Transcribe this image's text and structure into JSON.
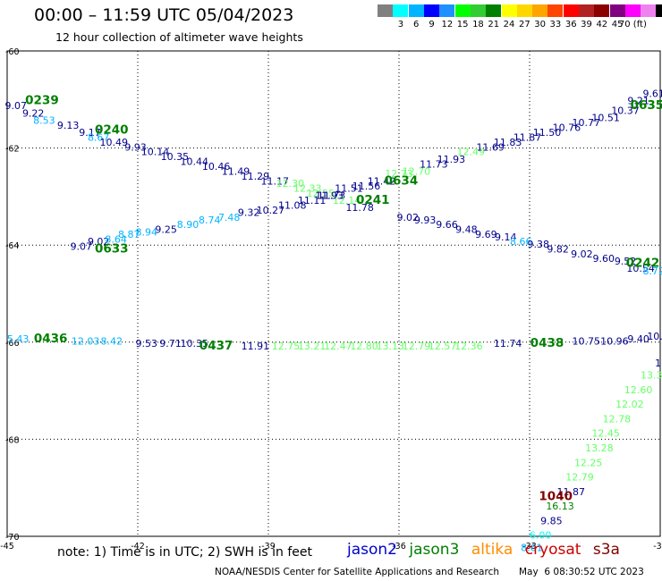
{
  "header": {
    "title": "00:00 – 11:59 UTC 05/04/2023",
    "subtitle": "12 hour collection of altimeter wave heights"
  },
  "color_scale": {
    "colors": [
      "#808080",
      "#00ffff",
      "#00b4ff",
      "#0000ff",
      "#1e90ff",
      "#00ff00",
      "#32cd32",
      "#008000",
      "#ffff00",
      "#ffd700",
      "#ffa500",
      "#ff4500",
      "#ff0000",
      "#b22222",
      "#8b0000",
      "#800080",
      "#ff00ff",
      "#ee82ee",
      "#000000"
    ],
    "labels": [
      "3",
      "6",
      "9",
      "12",
      "15",
      "18",
      "21",
      "24",
      "27",
      "30",
      "33",
      "36",
      "39",
      "42",
      "45",
      "70 (ft)"
    ]
  },
  "chart_data": {
    "type": "scatter",
    "x_axis": {
      "ticks": [
        "-45",
        "-42",
        "-39",
        "-36",
        "-33",
        "-30"
      ],
      "range": [
        -45,
        -30
      ]
    },
    "y_axis": {
      "ticks": [
        "-60",
        "-62",
        "-64",
        "-66",
        "-68",
        "-70"
      ],
      "range": [
        -70,
        -60
      ]
    },
    "grid": true,
    "satellites": [
      {
        "name": "jason2",
        "color": "#0000cd"
      },
      {
        "name": "jason3",
        "color": "#008000"
      },
      {
        "name": "altika",
        "color": "#ff8c00"
      },
      {
        "name": "cryosat",
        "color": "#cc0000"
      },
      {
        "name": "s3a",
        "color": "#800000"
      }
    ],
    "passes": [
      {
        "label": "0239",
        "lon": -44.2,
        "lat": -61.1,
        "color": "#008000"
      },
      {
        "label": "0240",
        "lon": -42.6,
        "lat": -61.7,
        "color": "#008000"
      },
      {
        "label": "0633",
        "lon": -42.6,
        "lat": -64.15,
        "color": "#008000"
      },
      {
        "label": "0634",
        "lon": -35.95,
        "lat": -62.75,
        "color": "#008000"
      },
      {
        "label": "0241",
        "lon": -36.6,
        "lat": -63.15,
        "color": "#008000"
      },
      {
        "label": "0635",
        "lon": -30.3,
        "lat": -61.2,
        "color": "#008000"
      },
      {
        "label": "0242",
        "lon": -30.4,
        "lat": -64.45,
        "color": "#008000"
      },
      {
        "label": "0436",
        "lon": -44.0,
        "lat": -66.0,
        "color": "#008000"
      },
      {
        "label": "0437",
        "lon": -40.2,
        "lat": -66.15,
        "color": "#008000"
      },
      {
        "label": "0438",
        "lon": -32.6,
        "lat": -66.1,
        "color": "#008000"
      },
      {
        "label": "1040",
        "lon": -32.4,
        "lat": -69.25,
        "color": "#800000"
      }
    ],
    "points": [
      {
        "lon": -44.8,
        "lat": -61.2,
        "v": "9.07",
        "c": "#00008b"
      },
      {
        "lon": -44.4,
        "lat": -61.35,
        "v": "9.22",
        "c": "#00008b"
      },
      {
        "lon": -44.15,
        "lat": -61.5,
        "v": "8.53",
        "c": "#00b4ff"
      },
      {
        "lon": -43.6,
        "lat": -61.6,
        "v": "9.13",
        "c": "#00008b"
      },
      {
        "lon": -43.1,
        "lat": -61.75,
        "v": "9.17",
        "c": "#00008b"
      },
      {
        "lon": -42.9,
        "lat": -61.85,
        "v": "8.67",
        "c": "#00b4ff"
      },
      {
        "lon": -42.55,
        "lat": -61.95,
        "v": "10.49",
        "c": "#00008b"
      },
      {
        "lon": -42.05,
        "lat": -62.05,
        "v": "9.93",
        "c": "#00008b"
      },
      {
        "lon": -41.6,
        "lat": -62.15,
        "v": "10.14",
        "c": "#00008b"
      },
      {
        "lon": -41.15,
        "lat": -62.25,
        "v": "10.35",
        "c": "#00008b"
      },
      {
        "lon": -40.7,
        "lat": -62.35,
        "v": "10.44",
        "c": "#00008b"
      },
      {
        "lon": -40.2,
        "lat": -62.45,
        "v": "10.46",
        "c": "#00008b"
      },
      {
        "lon": -39.75,
        "lat": -62.55,
        "v": "11.49",
        "c": "#00008b"
      },
      {
        "lon": -39.3,
        "lat": -62.65,
        "v": "11.29",
        "c": "#00008b"
      },
      {
        "lon": -38.85,
        "lat": -62.75,
        "v": "11.17",
        "c": "#00008b"
      },
      {
        "lon": -38.5,
        "lat": -62.8,
        "v": "12.30",
        "c": "#66ff66"
      },
      {
        "lon": -38.1,
        "lat": -62.9,
        "v": "12.33",
        "c": "#66ff66"
      },
      {
        "lon": -37.8,
        "lat": -63.0,
        "v": "12.55",
        "c": "#66ff66"
      },
      {
        "lon": -37.55,
        "lat": -63.05,
        "v": "11.73",
        "c": "#00008b"
      },
      {
        "lon": -37.2,
        "lat": -63.15,
        "v": "12.14",
        "c": "#66ff66"
      },
      {
        "lon": -36.9,
        "lat": -63.3,
        "v": "11.78",
        "c": "#00008b"
      },
      {
        "lon": -35.8,
        "lat": -63.5,
        "v": "9.02",
        "c": "#00008b"
      },
      {
        "lon": -35.4,
        "lat": -63.55,
        "v": "9.93",
        "c": "#00008b"
      },
      {
        "lon": -34.9,
        "lat": -63.65,
        "v": "9.66",
        "c": "#00008b"
      },
      {
        "lon": -34.45,
        "lat": -63.75,
        "v": "9.48",
        "c": "#00008b"
      },
      {
        "lon": -34.0,
        "lat": -63.85,
        "v": "9.69",
        "c": "#00008b"
      },
      {
        "lon": -33.55,
        "lat": -63.9,
        "v": "9.14",
        "c": "#00008b"
      },
      {
        "lon": -33.2,
        "lat": -64.0,
        "v": "8.66",
        "c": "#00b4ff"
      },
      {
        "lon": -32.8,
        "lat": -64.05,
        "v": "9.38",
        "c": "#00008b"
      },
      {
        "lon": -32.35,
        "lat": -64.15,
        "v": "9.82",
        "c": "#00008b"
      },
      {
        "lon": -31.8,
        "lat": -64.25,
        "v": "9.02",
        "c": "#00008b"
      },
      {
        "lon": -31.3,
        "lat": -64.35,
        "v": "9.60",
        "c": "#00008b"
      },
      {
        "lon": -30.8,
        "lat": -64.4,
        "v": "9.52",
        "c": "#00008b"
      },
      {
        "lon": -30.45,
        "lat": -64.55,
        "v": "10.54",
        "c": "#00008b"
      },
      {
        "lon": -30.15,
        "lat": -64.6,
        "v": "8.72",
        "c": "#00b4ff"
      },
      {
        "lon": -43.3,
        "lat": -64.1,
        "v": "9.07",
        "c": "#00008b"
      },
      {
        "lon": -42.9,
        "lat": -64.0,
        "v": "9.02",
        "c": "#00008b"
      },
      {
        "lon": -42.5,
        "lat": -63.95,
        "v": "8.64",
        "c": "#00b4ff"
      },
      {
        "lon": -42.2,
        "lat": -63.85,
        "v": "8.87",
        "c": "#00b4ff"
      },
      {
        "lon": -41.8,
        "lat": -63.8,
        "v": "8.94",
        "c": "#00b4ff"
      },
      {
        "lon": -41.35,
        "lat": -63.75,
        "v": "9.25",
        "c": "#00008b"
      },
      {
        "lon": -40.85,
        "lat": -63.65,
        "v": "8.90",
        "c": "#00b4ff"
      },
      {
        "lon": -40.35,
        "lat": -63.55,
        "v": "8.74",
        "c": "#00b4ff"
      },
      {
        "lon": -39.9,
        "lat": -63.5,
        "v": "7.48",
        "c": "#00b4ff"
      },
      {
        "lon": -39.45,
        "lat": -63.4,
        "v": "9.32",
        "c": "#00008b"
      },
      {
        "lon": -38.95,
        "lat": -63.35,
        "v": "10.27",
        "c": "#00008b"
      },
      {
        "lon": -38.45,
        "lat": -63.25,
        "v": "11.08",
        "c": "#00008b"
      },
      {
        "lon": -38.0,
        "lat": -63.15,
        "v": "11.11",
        "c": "#00008b"
      },
      {
        "lon": -37.6,
        "lat": -63.05,
        "v": "11.93",
        "c": "#00008b"
      },
      {
        "lon": -37.15,
        "lat": -62.9,
        "v": "11.51",
        "c": "#00008b"
      },
      {
        "lon": -36.75,
        "lat": -62.85,
        "v": "11.56",
        "c": "#00008b"
      },
      {
        "lon": -36.4,
        "lat": -62.75,
        "v": "11.42",
        "c": "#00008b"
      },
      {
        "lon": -36.0,
        "lat": -62.6,
        "v": "12.73",
        "c": "#66ff66"
      },
      {
        "lon": -35.6,
        "lat": -62.55,
        "v": "12.70",
        "c": "#66ff66"
      },
      {
        "lon": -35.2,
        "lat": -62.4,
        "v": "11.73",
        "c": "#00008b"
      },
      {
        "lon": -34.8,
        "lat": -62.3,
        "v": "11.93",
        "c": "#00008b"
      },
      {
        "lon": -34.35,
        "lat": -62.15,
        "v": "12.49",
        "c": "#66ff66"
      },
      {
        "lon": -33.9,
        "lat": -62.05,
        "v": "11.69",
        "c": "#00008b"
      },
      {
        "lon": -33.5,
        "lat": -61.95,
        "v": "11.83",
        "c": "#00008b"
      },
      {
        "lon": -33.05,
        "lat": -61.85,
        "v": "11.87",
        "c": "#00008b"
      },
      {
        "lon": -32.6,
        "lat": -61.75,
        "v": "11.50",
        "c": "#00008b"
      },
      {
        "lon": -32.15,
        "lat": -61.65,
        "v": "10.76",
        "c": "#00008b"
      },
      {
        "lon": -31.7,
        "lat": -61.55,
        "v": "10.77",
        "c": "#00008b"
      },
      {
        "lon": -31.25,
        "lat": -61.45,
        "v": "10.51",
        "c": "#00008b"
      },
      {
        "lon": -30.8,
        "lat": -61.3,
        "v": "10.37",
        "c": "#00008b"
      },
      {
        "lon": -30.5,
        "lat": -61.1,
        "v": "9.21",
        "c": "#00008b"
      },
      {
        "lon": -30.15,
        "lat": -60.95,
        "v": "9.61",
        "c": "#00008b"
      },
      {
        "lon": -44.75,
        "lat": -66.0,
        "v": "5.43",
        "c": "#00b4ff"
      },
      {
        "lon": -43.2,
        "lat": -66.05,
        "v": "12.03",
        "c": "#00b4ff"
      },
      {
        "lon": -42.6,
        "lat": -66.05,
        "v": "8.42",
        "c": "#00b4ff"
      },
      {
        "lon": -41.8,
        "lat": -66.1,
        "v": "9.53",
        "c": "#00008b"
      },
      {
        "lon": -41.25,
        "lat": -66.1,
        "v": "9.71",
        "c": "#00008b"
      },
      {
        "lon": -40.7,
        "lat": -66.1,
        "v": "10.35",
        "c": "#00008b"
      },
      {
        "lon": -39.3,
        "lat": -66.15,
        "v": "11.91",
        "c": "#00008b"
      },
      {
        "lon": -38.6,
        "lat": -66.15,
        "v": "12.75",
        "c": "#66ff66"
      },
      {
        "lon": -38.0,
        "lat": -66.15,
        "v": "13.21",
        "c": "#66ff66"
      },
      {
        "lon": -37.4,
        "lat": -66.15,
        "v": "12.47",
        "c": "#66ff66"
      },
      {
        "lon": -36.8,
        "lat": -66.15,
        "v": "12.80",
        "c": "#66ff66"
      },
      {
        "lon": -36.2,
        "lat": -66.15,
        "v": "13.13",
        "c": "#66ff66"
      },
      {
        "lon": -35.6,
        "lat": -66.15,
        "v": "12.79",
        "c": "#66ff66"
      },
      {
        "lon": -35.0,
        "lat": -66.15,
        "v": "12.57",
        "c": "#66ff66"
      },
      {
        "lon": -34.4,
        "lat": -66.15,
        "v": "12.36",
        "c": "#66ff66"
      },
      {
        "lon": -33.5,
        "lat": -66.1,
        "v": "11.74",
        "c": "#00008b"
      },
      {
        "lon": -31.7,
        "lat": -66.05,
        "v": "10.75",
        "c": "#00008b"
      },
      {
        "lon": -31.05,
        "lat": -66.05,
        "v": "10.96",
        "c": "#00008b"
      },
      {
        "lon": -30.5,
        "lat": -66.0,
        "v": "9.40",
        "c": "#00008b"
      },
      {
        "lon": -30.05,
        "lat": -65.95,
        "v": "10.3",
        "c": "#00008b"
      },
      {
        "lon": -30.05,
        "lat": -66.5,
        "v": "1",
        "c": "#00008b"
      },
      {
        "lon": -30.2,
        "lat": -66.75,
        "v": "13.3",
        "c": "#66ff66"
      },
      {
        "lon": -30.5,
        "lat": -67.05,
        "v": "12.60",
        "c": "#66ff66"
      },
      {
        "lon": -30.7,
        "lat": -67.35,
        "v": "12.02",
        "c": "#66ff66"
      },
      {
        "lon": -31.0,
        "lat": -67.65,
        "v": "12.78",
        "c": "#66ff66"
      },
      {
        "lon": -31.25,
        "lat": -67.95,
        "v": "12.45",
        "c": "#66ff66"
      },
      {
        "lon": -31.4,
        "lat": -68.25,
        "v": "13.28",
        "c": "#66ff66"
      },
      {
        "lon": -31.65,
        "lat": -68.55,
        "v": "12.25",
        "c": "#66ff66"
      },
      {
        "lon": -31.85,
        "lat": -68.85,
        "v": "12.79",
        "c": "#66ff66"
      },
      {
        "lon": -32.05,
        "lat": -69.15,
        "v": "11.87",
        "c": "#00008b"
      },
      {
        "lon": -32.3,
        "lat": -69.45,
        "v": "16.13",
        "c": "#008000"
      },
      {
        "lon": -32.5,
        "lat": -69.75,
        "v": "9.85",
        "c": "#00008b"
      },
      {
        "lon": -32.75,
        "lat": -70.05,
        "v": "6.00",
        "c": "#00ffff"
      },
      {
        "lon": -32.95,
        "lat": -70.3,
        "v": "8.61",
        "c": "#00b4ff"
      }
    ]
  },
  "footer": {
    "note": "note:  1) Time is in UTC; 2) SWH is in feet",
    "legend": [
      "jason2",
      "jason3",
      "altika",
      "cryosat",
      "s3a"
    ],
    "credit": "NOAA/NESDIS Center for Satellite Applications and Research",
    "timestamp": "May  6 08:30:52 UTC 2023"
  }
}
